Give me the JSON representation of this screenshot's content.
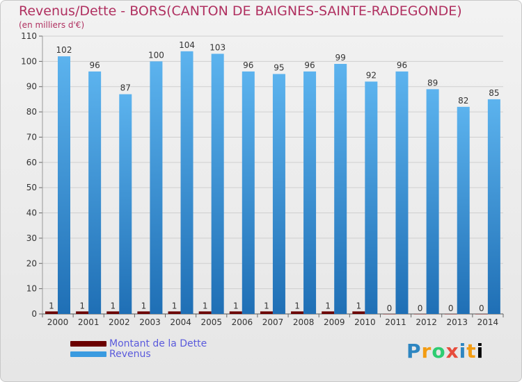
{
  "header": {
    "title": "Revenus/Dette - BORS(CANTON DE BAIGNES-SAINTE-RADEGONDE)",
    "subtitle": "(en milliers d'€)"
  },
  "legend": {
    "items": [
      {
        "label": "Montant de la Dette",
        "color": "#6b0000"
      },
      {
        "label": "Revenus",
        "color": "#3a9be0"
      }
    ]
  },
  "logo": {
    "letters": [
      "P",
      "r",
      "o",
      "x",
      "i",
      "t",
      "i"
    ]
  },
  "colors": {
    "revenus": "#3a9be0",
    "revenus_dark": "#1f6fb5",
    "dette": "#6b0000",
    "axis_text": "#333333",
    "title": "#b03060"
  },
  "chart_data": {
    "type": "bar",
    "categories": [
      "2000",
      "2001",
      "2002",
      "2003",
      "2004",
      "2005",
      "2006",
      "2007",
      "2008",
      "2009",
      "2010",
      "2011",
      "2012",
      "2013",
      "2014"
    ],
    "series": [
      {
        "name": "Montant de la Dette",
        "values": [
          1,
          1,
          1,
          1,
          1,
          1,
          1,
          1,
          1,
          1,
          1,
          0,
          0,
          0,
          0
        ]
      },
      {
        "name": "Revenus",
        "values": [
          102,
          96,
          87,
          100,
          104,
          103,
          96,
          95,
          96,
          99,
          92,
          96,
          89,
          82,
          85
        ]
      }
    ],
    "yticks": [
      0,
      10,
      20,
      30,
      40,
      50,
      60,
      70,
      80,
      90,
      100,
      110
    ],
    "ylim": [
      0,
      110
    ],
    "grid": true,
    "legend_position": "bottom-left"
  }
}
